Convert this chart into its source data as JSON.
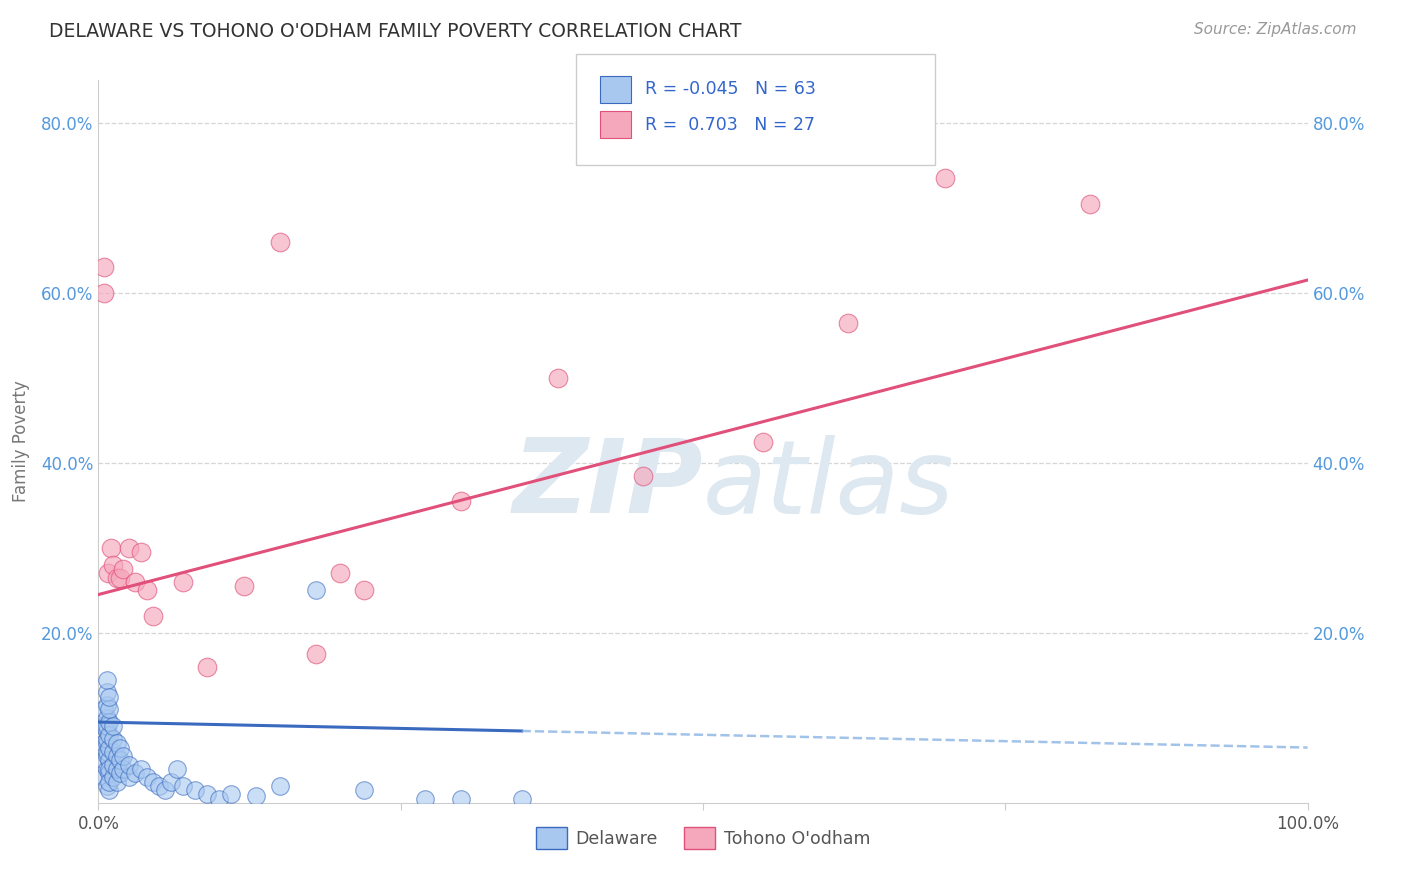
{
  "title": "DELAWARE VS TOHONO O'ODHAM FAMILY POVERTY CORRELATION CHART",
  "source": "Source: ZipAtlas.com",
  "ylabel": "Family Poverty",
  "xlim": [
    0.0,
    1.0
  ],
  "ylim": [
    0.0,
    0.85
  ],
  "R1": -0.045,
  "N1": 63,
  "R2": 0.703,
  "N2": 27,
  "color_blue": "#a8c8f0",
  "color_pink": "#f5a8bc",
  "line_color_blue": "#3a6abf",
  "line_color_pink": "#e0507a",
  "dashed_line_color_blue": "#7aaae0",
  "watermark_color": "#dde8f0",
  "grid_color": "#cccccc",
  "legend_label1": "Delaware",
  "legend_label2": "Tohono O'odham",
  "blue_scatter_x": [
    0.005,
    0.005,
    0.005,
    0.005,
    0.005,
    0.007,
    0.007,
    0.007,
    0.007,
    0.007,
    0.007,
    0.007,
    0.007,
    0.007,
    0.007,
    0.007,
    0.007,
    0.009,
    0.009,
    0.009,
    0.009,
    0.009,
    0.009,
    0.009,
    0.009,
    0.009,
    0.009,
    0.012,
    0.012,
    0.012,
    0.012,
    0.012,
    0.015,
    0.015,
    0.015,
    0.015,
    0.018,
    0.018,
    0.018,
    0.02,
    0.02,
    0.025,
    0.025,
    0.03,
    0.035,
    0.04,
    0.045,
    0.05,
    0.055,
    0.06,
    0.065,
    0.07,
    0.08,
    0.09,
    0.1,
    0.11,
    0.13,
    0.15,
    0.18,
    0.22,
    0.27,
    0.3,
    0.35
  ],
  "blue_scatter_y": [
    0.03,
    0.05,
    0.07,
    0.09,
    0.11,
    0.04,
    0.055,
    0.07,
    0.085,
    0.1,
    0.115,
    0.13,
    0.145,
    0.06,
    0.075,
    0.09,
    0.02,
    0.035,
    0.05,
    0.065,
    0.08,
    0.095,
    0.11,
    0.125,
    0.04,
    0.015,
    0.025,
    0.03,
    0.045,
    0.06,
    0.075,
    0.09,
    0.025,
    0.04,
    0.055,
    0.07,
    0.035,
    0.05,
    0.065,
    0.04,
    0.055,
    0.03,
    0.045,
    0.035,
    0.04,
    0.03,
    0.025,
    0.02,
    0.015,
    0.025,
    0.04,
    0.02,
    0.015,
    0.01,
    0.005,
    0.01,
    0.008,
    0.02,
    0.25,
    0.015,
    0.005,
    0.005,
    0.005
  ],
  "pink_scatter_x": [
    0.005,
    0.005,
    0.008,
    0.01,
    0.012,
    0.015,
    0.018,
    0.02,
    0.025,
    0.03,
    0.035,
    0.04,
    0.045,
    0.07,
    0.09,
    0.12,
    0.15,
    0.18,
    0.2,
    0.22,
    0.3,
    0.38,
    0.45,
    0.55,
    0.62,
    0.7,
    0.82
  ],
  "pink_scatter_y": [
    0.63,
    0.6,
    0.27,
    0.3,
    0.28,
    0.265,
    0.265,
    0.275,
    0.3,
    0.26,
    0.295,
    0.25,
    0.22,
    0.26,
    0.16,
    0.255,
    0.66,
    0.175,
    0.27,
    0.25,
    0.355,
    0.5,
    0.385,
    0.425,
    0.565,
    0.735,
    0.705
  ],
  "blue_line_x0": 0.0,
  "blue_line_x1": 1.0,
  "blue_line_y0": 0.095,
  "blue_line_y1": 0.065,
  "pink_line_x0": 0.0,
  "pink_line_x1": 1.0,
  "pink_line_y0": 0.245,
  "pink_line_y1": 0.615
}
